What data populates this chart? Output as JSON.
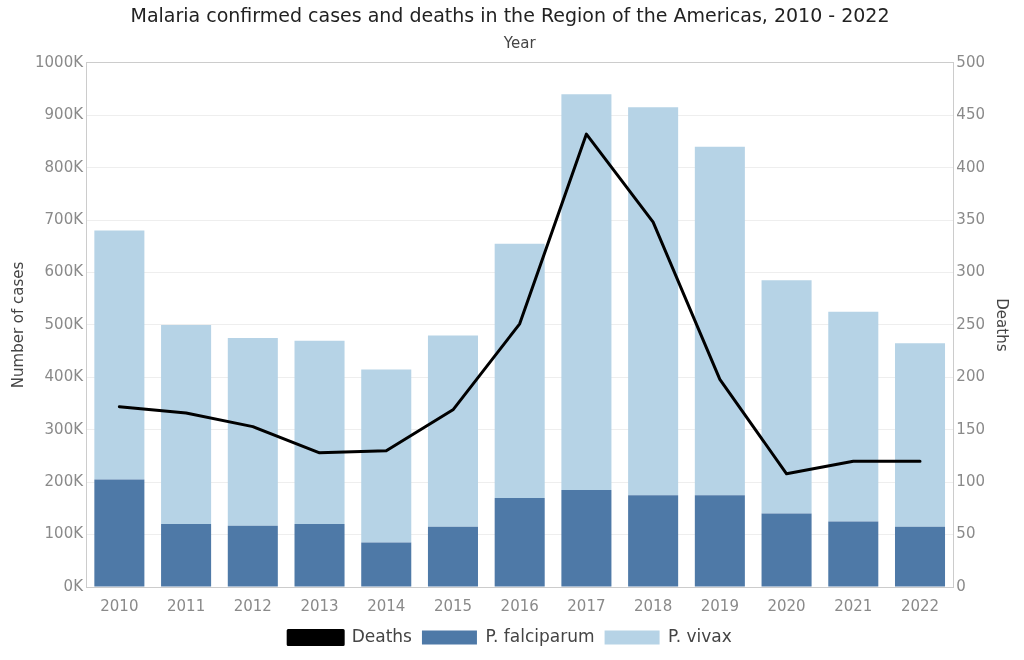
{
  "chart_data": {
    "type": "bar",
    "stacked": true,
    "title": "Malaria confirmed cases and deaths in the Region of the Americas, 2010 - 2022",
    "xlabel": "Year",
    "ylabel": "Number of cases",
    "y2label": "Deaths",
    "categories": [
      "2010",
      "2011",
      "2012",
      "2013",
      "2014",
      "2015",
      "2016",
      "2017",
      "2018",
      "2019",
      "2020",
      "2021",
      "2022"
    ],
    "series": [
      {
        "name": "P. falciparum",
        "color": "#4e79a7",
        "values": [
          205000,
          120000,
          117000,
          120000,
          85000,
          115000,
          170000,
          185000,
          175000,
          175000,
          140000,
          125000,
          115000
        ]
      },
      {
        "name": "P. vivax",
        "color": "#b6d3e6",
        "values": [
          475000,
          380000,
          358000,
          350000,
          330000,
          365000,
          485000,
          755000,
          740000,
          665000,
          445000,
          400000,
          350000
        ]
      },
      {
        "name": "Deaths",
        "type": "line",
        "axis": "y2",
        "color": "#000000",
        "values": [
          172,
          166,
          153,
          128,
          130,
          169,
          251,
          432,
          348,
          198,
          108,
          120,
          120
        ]
      }
    ],
    "ylim": [
      0,
      1000000
    ],
    "yticks": [
      {
        "value": 0,
        "label": "0K"
      },
      {
        "value": 100000,
        "label": "100K"
      },
      {
        "value": 200000,
        "label": "200K"
      },
      {
        "value": 300000,
        "label": "300K"
      },
      {
        "value": 400000,
        "label": "400K"
      },
      {
        "value": 500000,
        "label": "500K"
      },
      {
        "value": 600000,
        "label": "600K"
      },
      {
        "value": 700000,
        "label": "700K"
      },
      {
        "value": 800000,
        "label": "800K"
      },
      {
        "value": 900000,
        "label": "900K"
      },
      {
        "value": 1000000,
        "label": "1000K"
      }
    ],
    "y2lim": [
      0,
      500
    ],
    "y2ticks": [
      0,
      50,
      100,
      150,
      200,
      250,
      300,
      350,
      400,
      450,
      500
    ],
    "grid": "y",
    "legend": "bottom",
    "marker": "none",
    "line_style": "solid"
  }
}
